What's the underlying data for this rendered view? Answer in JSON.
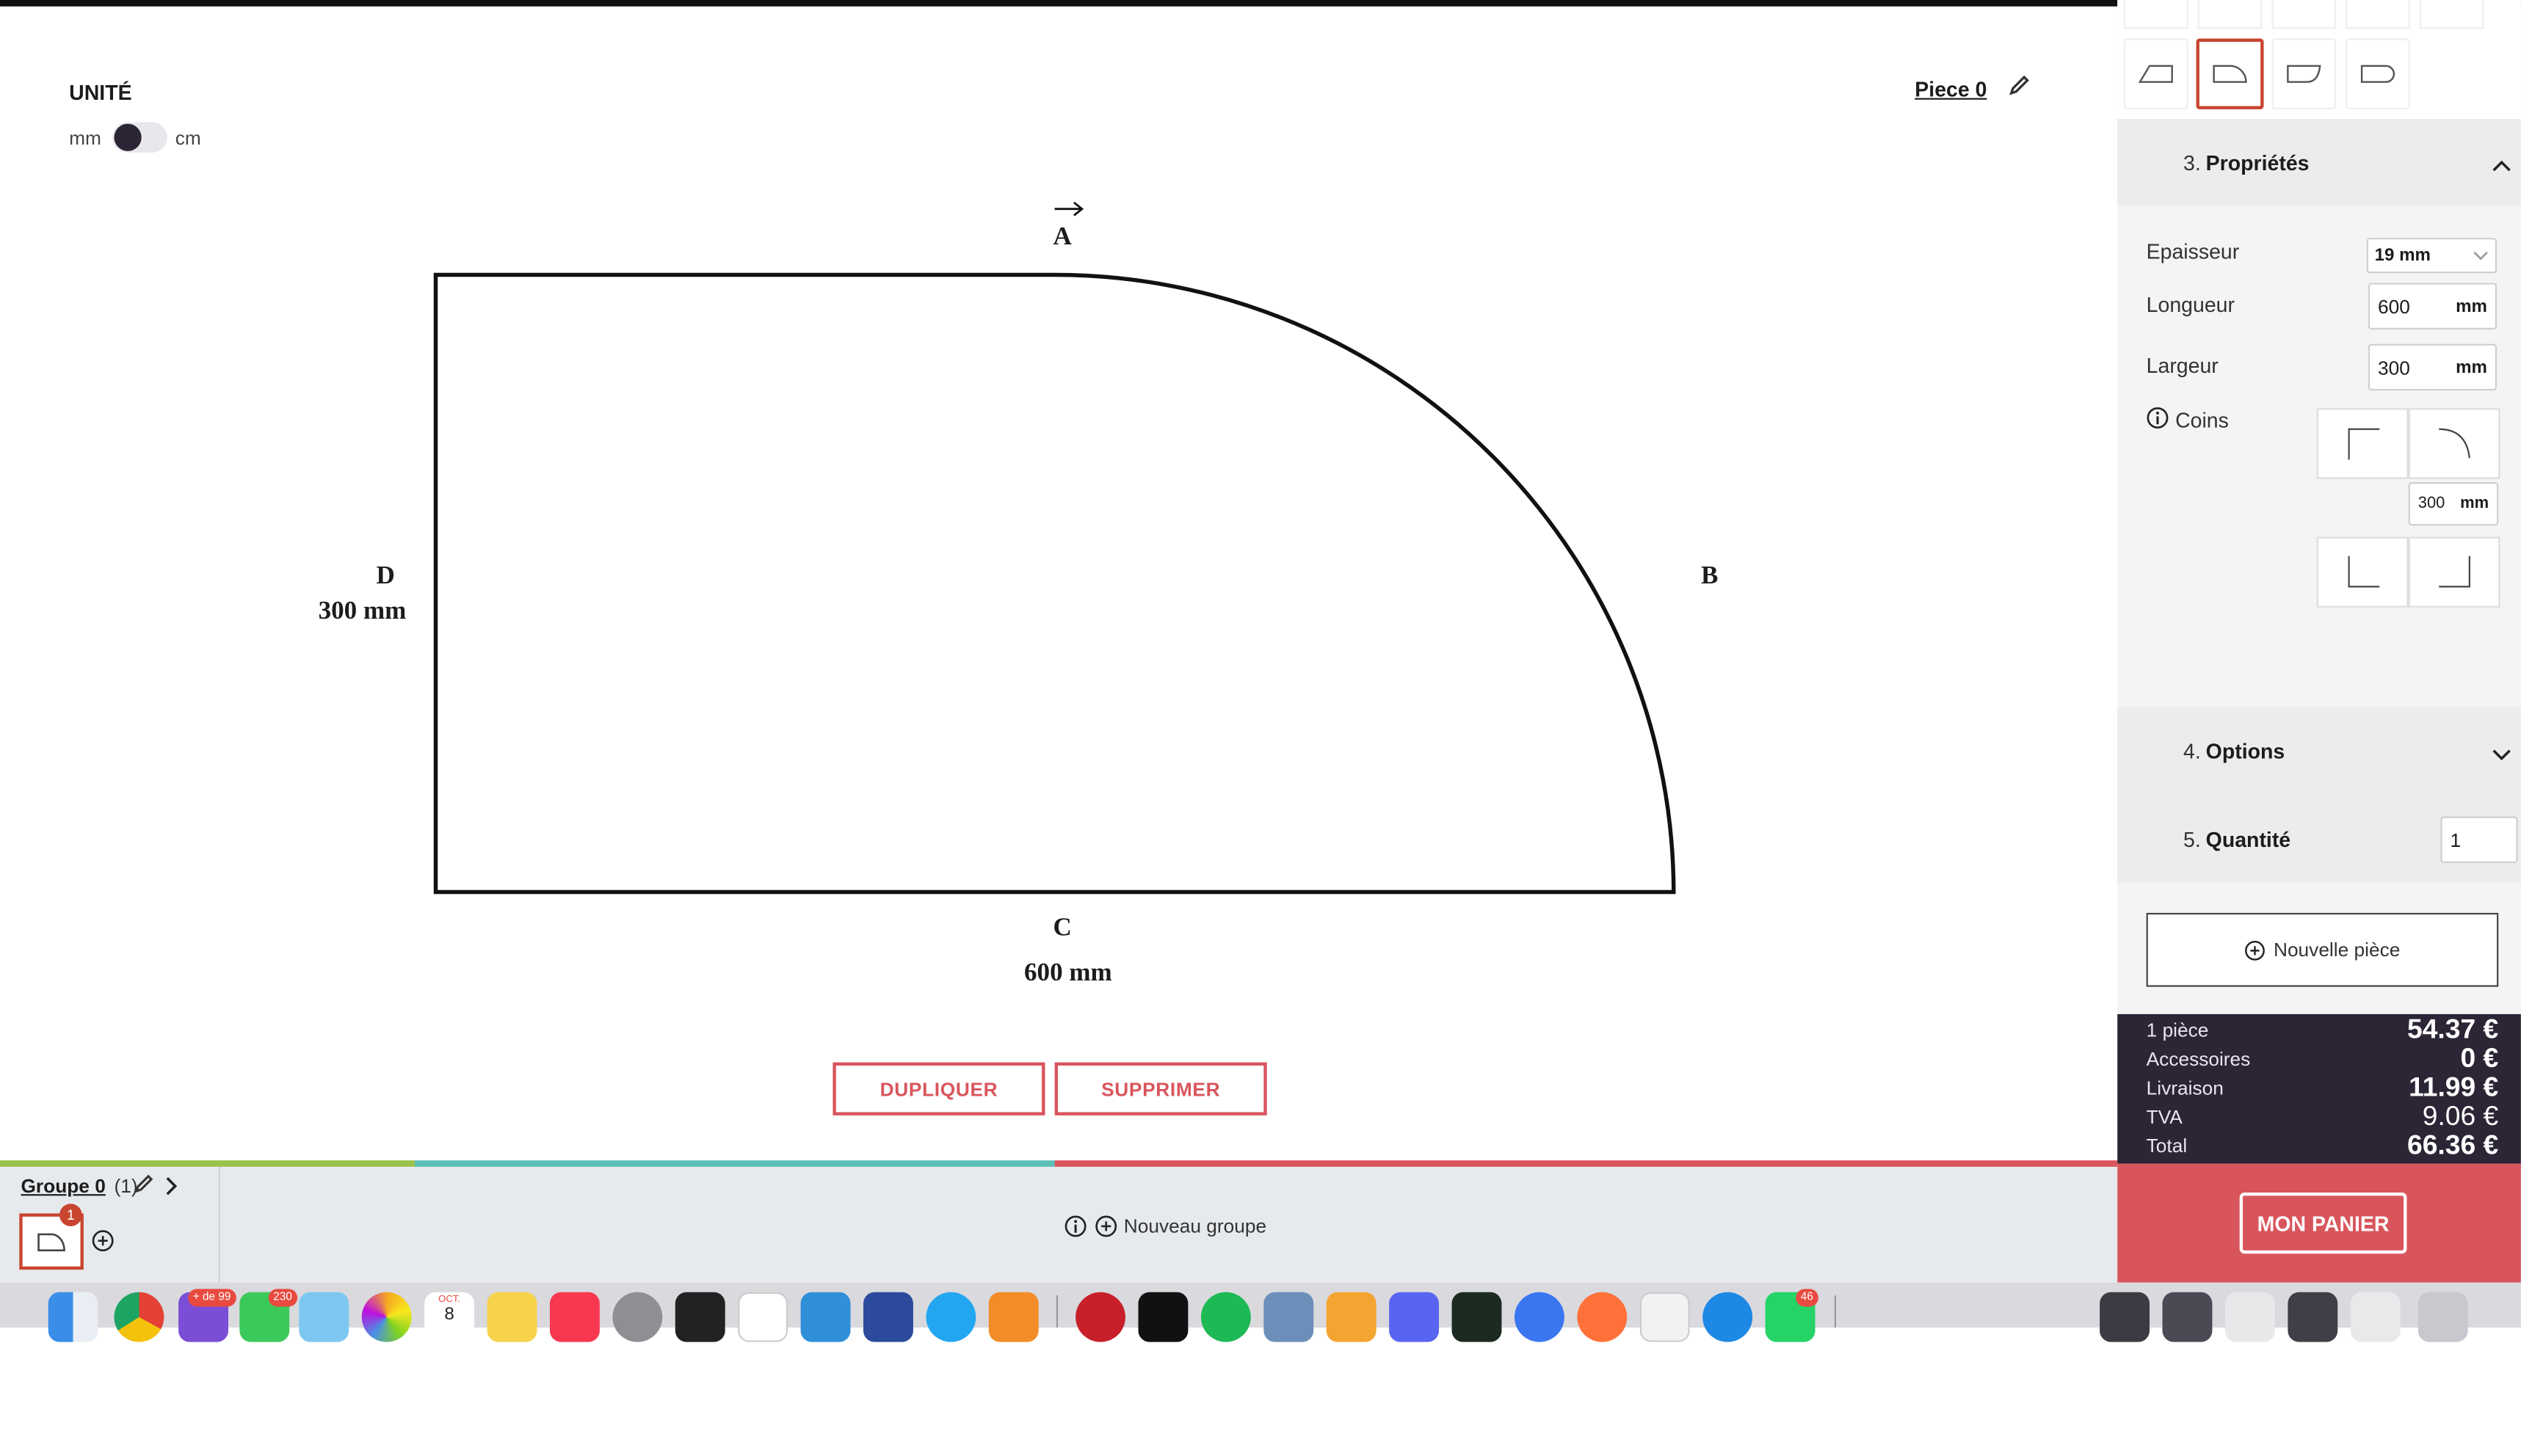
{
  "unit": {
    "title": "UNITÉ",
    "left": "mm",
    "right": "cm",
    "selected": "mm"
  },
  "piece": {
    "title": "Piece 0"
  },
  "drawing": {
    "side_a": "A",
    "side_b": "B",
    "side_c": "C",
    "side_d": "D",
    "width_label": "600 mm",
    "height_label": "300 mm"
  },
  "actions": {
    "duplicate": "DUPLIQUER",
    "delete": "SUPPRIMER"
  },
  "group": {
    "name": "Groupe 0",
    "count": "(1)",
    "badge": "1",
    "new_group": "Nouveau groupe"
  },
  "panel": {
    "properties": {
      "number": "3.",
      "title": "Propriétés"
    },
    "thickness": {
      "label": "Epaisseur",
      "value": "19 mm"
    },
    "length": {
      "label": "Longueur",
      "value": "600",
      "unit": "mm"
    },
    "width": {
      "label": "Largeur",
      "value": "300",
      "unit": "mm"
    },
    "corners": {
      "label": "Coins",
      "radius": "300",
      "unit": "mm"
    },
    "options": {
      "number": "4.",
      "title": "Options"
    },
    "quantity": {
      "number": "5.",
      "title": "Quantité",
      "value": "1"
    },
    "new_piece": "Nouvelle pièce"
  },
  "pricing": {
    "rows": [
      {
        "label": "1 pièce",
        "value": "54.37 €"
      },
      {
        "label": "Accessoires",
        "value": "0 €"
      },
      {
        "label": "Livraison",
        "value": "11.99 €"
      },
      {
        "label": "TVA",
        "value": "9.06 €"
      },
      {
        "label": "Total",
        "value": "66.36 €"
      }
    ]
  },
  "cart": {
    "label": "MON PANIER"
  },
  "dock": {
    "mail_badge": "+ de 99",
    "messages_badge": "230",
    "calendar_month": "OCT.",
    "calendar_day": "8",
    "whatsapp_badge": "46"
  },
  "colors": {
    "accent": "#c8452f",
    "cart_bg": "#d9555c",
    "summary_bg": "#2b2535",
    "sidebar_bg": "#f4f4f4",
    "green": "#9bc34a",
    "teal": "#5bbfb5",
    "red": "#d9555c"
  }
}
